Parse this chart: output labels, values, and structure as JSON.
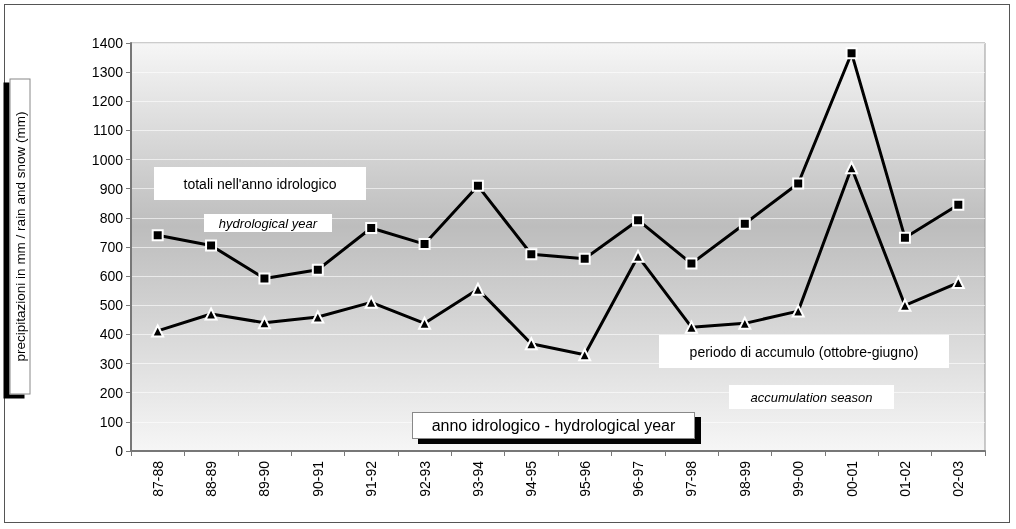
{
  "chart_data": {
    "type": "line",
    "ylabel": "precipitazioni in mm / rain and snow (mm)",
    "xlabel": "anno idrologico - hydrological year",
    "categories": [
      "87-88",
      "88-89",
      "89-90",
      "90-91",
      "91-92",
      "92-93",
      "93-94",
      "94-95",
      "95-96",
      "96-97",
      "97-98",
      "98-99",
      "99-00",
      "00-01",
      "01-02",
      "02-03"
    ],
    "series": [
      {
        "color": "#000000",
        "marker": "square",
        "values": [
          740,
          705,
          592,
          622,
          765,
          710,
          910,
          675,
          660,
          792,
          643,
          780,
          918,
          1365,
          732,
          845
        ]
      },
      {
        "color": "#000000",
        "marker": "triangle",
        "values": [
          412,
          470,
          440,
          460,
          510,
          438,
          555,
          368,
          330,
          668,
          425,
          438,
          480,
          972,
          500,
          578
        ]
      }
    ],
    "annotations": [
      "totali nell'anno idrologico",
      "hydrological year",
      "periodo di accumulo (ottobre-giugno)",
      "accumulation season"
    ],
    "ylim": [
      0,
      1400
    ],
    "yticks": [
      0,
      100,
      200,
      300,
      400,
      500,
      600,
      700,
      800,
      900,
      1000,
      1100,
      1200,
      1300,
      1400
    ],
    "grid": "y",
    "line_style": "solid"
  }
}
